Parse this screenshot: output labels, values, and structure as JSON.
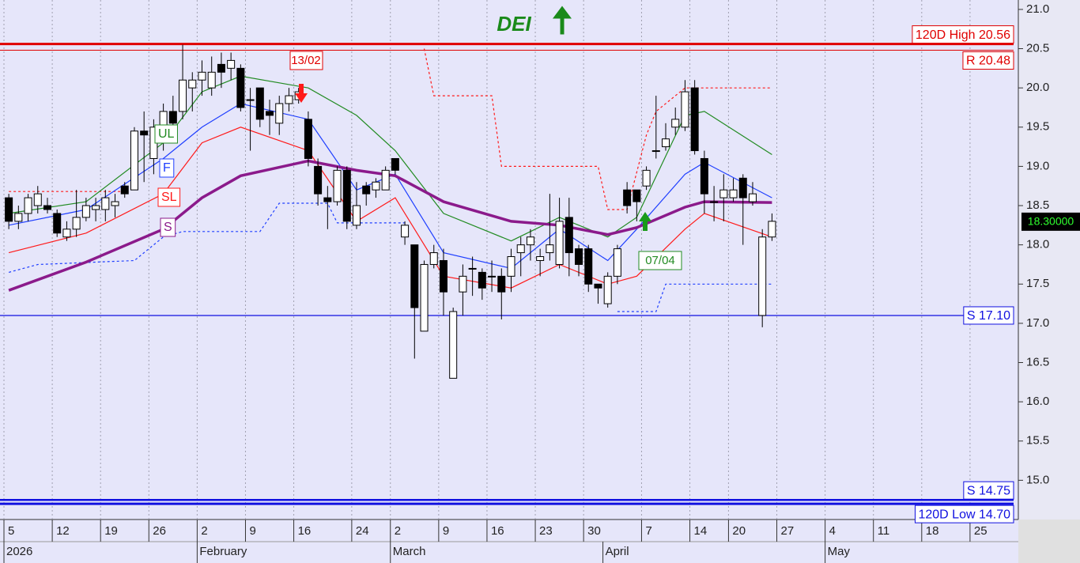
{
  "chart_data": {
    "type": "candlestick",
    "title": "DEI",
    "dates": [
      "2026-01-05",
      "2026-01-06",
      "2026-01-07",
      "2026-01-08",
      "2026-01-09",
      "2026-01-12",
      "2026-01-13",
      "2026-01-14",
      "2026-01-15",
      "2026-01-16",
      "2026-01-19",
      "2026-01-20",
      "2026-01-21",
      "2026-01-22",
      "2026-01-23",
      "2026-01-26",
      "2026-01-27",
      "2026-01-28",
      "2026-01-29",
      "2026-01-30",
      "2026-02-02",
      "2026-02-03",
      "2026-02-04",
      "2026-02-05",
      "2026-02-06",
      "2026-02-09",
      "2026-02-10",
      "2026-02-11",
      "2026-02-12",
      "2026-02-13",
      "2026-02-16",
      "2026-02-17",
      "2026-02-18",
      "2026-02-19",
      "2026-02-20",
      "2026-02-23",
      "2026-02-24",
      "2026-02-25",
      "2026-02-26",
      "2026-02-27",
      "2026-03-02",
      "2026-03-03",
      "2026-03-04",
      "2026-03-05",
      "2026-03-06",
      "2026-03-09",
      "2026-03-10",
      "2026-03-11",
      "2026-03-12",
      "2026-03-13",
      "2026-03-16",
      "2026-03-17",
      "2026-03-18",
      "2026-03-19",
      "2026-03-20",
      "2026-03-23",
      "2026-03-24",
      "2026-03-25",
      "2026-03-26",
      "2026-03-27",
      "2026-03-30",
      "2026-03-31",
      "2026-04-01",
      "2026-04-02",
      "2026-04-03",
      "2026-04-06",
      "2026-04-07",
      "2026-04-08",
      "2026-04-09",
      "2026-04-10",
      "2026-04-13",
      "2026-04-14",
      "2026-04-15",
      "2026-04-16",
      "2026-04-17",
      "2026-04-20",
      "2026-04-21",
      "2026-04-22",
      "2026-04-23",
      "2026-04-24"
    ],
    "open": [
      18.6,
      18.3,
      18.4,
      18.5,
      18.5,
      18.4,
      18.1,
      18.2,
      18.35,
      18.45,
      18.45,
      18.5,
      18.75,
      18.7,
      19.45,
      19.1,
      19.5,
      19.7,
      19.7,
      20.0,
      20.1,
      20.0,
      20.3,
      20.25,
      20.25,
      19.85,
      20.0,
      19.7,
      19.55,
      19.8,
      19.85,
      19.6,
      19.0,
      18.6,
      18.55,
      18.95,
      18.25,
      18.75,
      18.7,
      18.7,
      19.1,
      18.1,
      18.0,
      16.9,
      17.75,
      17.8,
      16.3,
      17.4,
      17.7,
      17.65,
      17.6,
      17.6,
      17.6,
      17.9,
      18.0,
      17.8,
      17.9,
      17.75,
      18.35,
      17.95,
      17.95,
      17.5,
      17.25,
      17.6,
      18.7,
      18.7,
      18.75,
      19.2,
      19.25,
      19.5,
      19.5,
      20.0,
      19.1,
      18.55,
      18.6,
      18.6,
      18.85,
      18.55,
      17.1,
      18.1
    ],
    "high": [
      18.65,
      18.5,
      18.65,
      18.75,
      18.6,
      18.45,
      18.3,
      18.7,
      18.6,
      18.6,
      18.7,
      18.65,
      18.8,
      19.5,
      19.7,
      19.6,
      19.8,
      19.9,
      20.55,
      20.2,
      20.35,
      20.4,
      20.45,
      20.45,
      20.3,
      20.0,
      20.0,
      19.85,
      19.9,
      20.0,
      20.0,
      19.7,
      19.1,
      18.75,
      19.0,
      19.0,
      18.8,
      18.8,
      18.85,
      19.0,
      19.1,
      18.3,
      18.0,
      17.8,
      18.0,
      17.95,
      17.2,
      17.75,
      17.85,
      17.7,
      17.8,
      17.7,
      17.95,
      18.1,
      18.2,
      17.95,
      18.65,
      18.6,
      18.6,
      18.0,
      18.0,
      17.5,
      17.65,
      18.0,
      18.8,
      18.7,
      19.0,
      19.9,
      19.55,
      19.75,
      20.1,
      20.1,
      19.2,
      18.75,
      18.9,
      18.85,
      18.9,
      18.8,
      18.2,
      18.4
    ],
    "low": [
      18.2,
      18.2,
      18.3,
      18.4,
      18.4,
      18.1,
      18.05,
      18.1,
      18.3,
      18.3,
      18.3,
      18.35,
      18.6,
      18.7,
      18.8,
      18.9,
      19.2,
      19.4,
      19.6,
      19.7,
      19.9,
      19.9,
      20.0,
      20.1,
      19.7,
      19.2,
      19.5,
      19.4,
      19.4,
      19.7,
      19.8,
      19.0,
      18.5,
      18.2,
      18.5,
      18.2,
      18.2,
      18.5,
      18.6,
      18.7,
      18.9,
      18.0,
      16.55,
      16.9,
      17.7,
      17.1,
      16.3,
      17.1,
      17.35,
      17.3,
      17.4,
      17.05,
      17.4,
      17.6,
      17.8,
      17.6,
      17.8,
      17.7,
      17.6,
      17.6,
      17.4,
      17.25,
      17.2,
      17.5,
      18.4,
      18.3,
      18.7,
      19.1,
      19.2,
      19.4,
      19.45,
      19.15,
      18.4,
      18.3,
      18.3,
      18.55,
      18.0,
      18.5,
      16.95,
      18.05
    ],
    "close": [
      18.3,
      18.4,
      18.6,
      18.65,
      18.45,
      18.15,
      18.2,
      18.35,
      18.5,
      18.5,
      18.6,
      18.55,
      18.65,
      19.45,
      19.4,
      19.5,
      19.7,
      19.55,
      20.1,
      20.1,
      20.2,
      20.2,
      20.2,
      20.35,
      19.75,
      19.85,
      19.6,
      19.65,
      19.8,
      19.9,
      19.95,
      19.1,
      18.65,
      18.55,
      18.95,
      18.3,
      18.5,
      18.65,
      18.8,
      18.95,
      18.95,
      18.25,
      17.2,
      17.75,
      17.9,
      17.4,
      17.15,
      17.6,
      17.7,
      17.45,
      17.6,
      17.4,
      17.85,
      18.0,
      18.1,
      17.85,
      18.0,
      18.3,
      17.9,
      17.75,
      17.5,
      17.45,
      17.6,
      17.95,
      18.5,
      18.55,
      18.95,
      19.2,
      19.35,
      19.6,
      19.95,
      19.2,
      18.65,
      18.55,
      18.7,
      18.7,
      18.6,
      18.65,
      18.1,
      18.3
    ],
    "xlim": [
      "2026-01-05",
      "2026-05-29"
    ],
    "ylim": [
      14.5,
      21.12
    ],
    "yticks": [
      {
        "value": 15,
        "label": "15.0"
      },
      15.5,
      {
        "value": 16,
        "label": "16.0"
      },
      16.5,
      {
        "value": 17,
        "label": "17.0"
      },
      17.5,
      {
        "value": 18,
        "label": "18.0"
      },
      18.5,
      {
        "value": 19,
        "label": "19.0"
      },
      19.5,
      {
        "value": 20,
        "label": "20.0"
      },
      20.5,
      {
        "value": 21,
        "label": "21.0"
      }
    ],
    "xticks": [
      {
        "value": "2026-01-05",
        "label": "5"
      },
      {
        "value": "2026-01-12",
        "label": "12"
      },
      {
        "value": "2026-01-19",
        "label": "19"
      },
      {
        "value": "2026-01-26",
        "label": "26"
      },
      {
        "value": "2026-02-02",
        "label": "2"
      },
      {
        "value": "2026-02-09",
        "label": "9"
      },
      {
        "value": "2026-02-16",
        "label": "16"
      },
      {
        "value": "2026-02-24",
        "label": "24"
      },
      {
        "value": "2026-03-02",
        "label": "2"
      },
      {
        "value": "2026-03-09",
        "label": "9"
      },
      {
        "value": "2026-03-16",
        "label": "16"
      },
      {
        "value": "2026-03-23",
        "label": "23"
      },
      {
        "value": "2026-03-30",
        "label": "30"
      },
      {
        "value": "2026-04-07",
        "label": "7"
      },
      {
        "value": "2026-04-14",
        "label": "14"
      },
      {
        "value": "2026-04-20",
        "label": "20"
      },
      {
        "value": "2026-04-27",
        "label": "27"
      },
      {
        "value": "2026-05-04",
        "label": "4"
      },
      {
        "value": "2026-05-11",
        "label": "11"
      },
      {
        "value": "2026-05-18",
        "label": "18"
      },
      {
        "value": "2026-05-25",
        "label": "25"
      }
    ],
    "month_ticks": [
      {
        "value": "2026-01-05",
        "label": "2026"
      },
      {
        "value": "2026-02-02",
        "label": "February"
      },
      {
        "value": "2026-03-02",
        "label": "March"
      },
      {
        "value": "2026-04-01",
        "label": "April"
      },
      {
        "value": "2026-05-04",
        "label": "May"
      }
    ],
    "lines": [
      {
        "name": "UL",
        "color": "#228b22",
        "dates": [
          "2026-01-05",
          "2026-01-15",
          "2026-01-27",
          "2026-02-02",
          "2026-02-06",
          "2026-02-17",
          "2026-02-24",
          "2026-03-02",
          "2026-03-09",
          "2026-03-18",
          "2026-03-25",
          "2026-04-01",
          "2026-04-06",
          "2026-04-13",
          "2026-04-15",
          "2026-04-24"
        ],
        "values": [
          18.4,
          18.55,
          19.3,
          19.95,
          20.15,
          20.0,
          19.65,
          19.2,
          18.4,
          18.05,
          18.35,
          18.1,
          18.35,
          19.65,
          19.7,
          19.15
        ]
      },
      {
        "name": "F",
        "color": "#1f3fff",
        "dates": [
          "2026-01-05",
          "2026-01-15",
          "2026-01-27",
          "2026-02-02",
          "2026-02-06",
          "2026-02-17",
          "2026-02-24",
          "2026-03-02",
          "2026-03-09",
          "2026-03-18",
          "2026-03-25",
          "2026-04-01",
          "2026-04-06",
          "2026-04-13",
          "2026-04-15",
          "2026-04-24"
        ],
        "values": [
          18.25,
          18.45,
          19.1,
          19.5,
          19.8,
          19.6,
          18.7,
          18.9,
          17.9,
          17.7,
          18.2,
          17.8,
          18.2,
          18.9,
          19.05,
          18.6
        ]
      },
      {
        "name": "SL",
        "color": "#ff1a1a",
        "dates": [
          "2026-01-05",
          "2026-01-15",
          "2026-01-27",
          "2026-02-02",
          "2026-02-06",
          "2026-02-17",
          "2026-02-24",
          "2026-03-02",
          "2026-03-09",
          "2026-03-18",
          "2026-03-25",
          "2026-04-01",
          "2026-04-06",
          "2026-04-13",
          "2026-04-15",
          "2026-04-24"
        ],
        "values": [
          17.9,
          18.15,
          18.65,
          19.3,
          19.5,
          19.2,
          18.3,
          18.6,
          17.6,
          17.45,
          17.75,
          17.5,
          17.6,
          18.2,
          18.4,
          18.1
        ]
      },
      {
        "name": "S",
        "color": "#8b1a8b",
        "dates": [
          "2026-01-05",
          "2026-01-15",
          "2026-01-27",
          "2026-02-02",
          "2026-02-06",
          "2026-02-17",
          "2026-02-24",
          "2026-03-02",
          "2026-03-09",
          "2026-03-18",
          "2026-03-25",
          "2026-04-01",
          "2026-04-06",
          "2026-04-13",
          "2026-04-15",
          "2026-04-24"
        ],
        "values": [
          17.42,
          17.78,
          18.2,
          18.6,
          18.88,
          19.07,
          18.95,
          18.88,
          18.55,
          18.3,
          18.25,
          18.13,
          18.22,
          18.48,
          18.55,
          18.54
        ]
      }
    ],
    "stops": [
      {
        "color": "#ff1a1a",
        "dates": [
          "2026-01-05",
          "2026-01-21",
          "2026-01-22",
          "2026-03-05",
          "2026-03-06",
          "2026-03-16",
          "2026-03-17",
          "2026-03-31",
          "2026-04-01",
          "2026-04-03",
          "2026-04-07",
          "2026-04-08",
          "2026-04-13",
          "2026-04-24"
        ],
        "values": [
          18.68,
          18.68,
          null,
          20.5,
          19.9,
          19.9,
          19.0,
          19.0,
          18.45,
          18.45,
          19.4,
          19.7,
          20.0,
          20.0
        ]
      },
      {
        "color": "#1f3fff",
        "dates": [
          "2026-01-05",
          "2026-01-08",
          "2026-01-22",
          "2026-01-27",
          "2026-01-29",
          "2026-02-10",
          "2026-02-12",
          "2026-02-19",
          "2026-02-20",
          "2026-03-03",
          "2026-03-04",
          "2026-04-02",
          "2026-04-08",
          "2026-04-09",
          "2026-04-24"
        ],
        "values": [
          17.65,
          17.75,
          17.8,
          18.1,
          18.17,
          18.17,
          18.53,
          18.53,
          18.28,
          18.28,
          null,
          17.15,
          17.15,
          17.5,
          17.5
        ]
      }
    ],
    "levels": [
      {
        "label": "120D High 20.56",
        "value": 20.56,
        "color": "#e00000"
      },
      {
        "label": "R 20.48",
        "value": 20.48,
        "color": "#e00000"
      },
      {
        "label": "S 17.10",
        "value": 17.1,
        "color": "#1010e0"
      },
      {
        "label": "S 14.75",
        "value": 14.75,
        "color": "#1010e0"
      },
      {
        "label": "120D Low 14.70",
        "value": 14.7,
        "color": "#1010e0"
      }
    ],
    "annotations": [
      "13/02",
      "07/04"
    ],
    "last_price": {
      "value": 18.3,
      "label": "18.30000"
    }
  }
}
